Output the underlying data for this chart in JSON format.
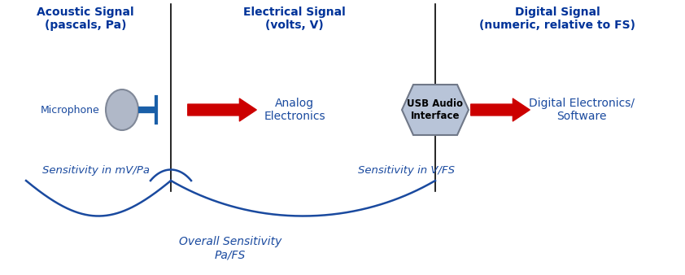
{
  "bg_color": "#ffffff",
  "dark_blue": "#003399",
  "text_blue": "#1a3a8f",
  "label_blue": "#1a4a9f",
  "red": "#cc0000",
  "gray_circle": "#b0b8c8",
  "gray_dark": "#808898",
  "usb_fill": "#b8c4d8",
  "usb_stroke": "#707888",
  "mic_stem_color": "#1a5fa8",
  "title1": "Acoustic Signal\n(pascals, Pa)",
  "title2": "Electrical Signal\n(volts, V)",
  "title3": "Digital Signal\n(numeric, relative to FS)",
  "label_micro": "Microphone",
  "label_analog": "Analog\nElectronics",
  "label_usb": "USB Audio\nInterface",
  "label_digital": "Digital Electronics/\nSoftware",
  "label_sens1": "Sensitivity in mV/Pa",
  "label_sens2": "Sensitivity in V/FS",
  "label_overall": "Overall Sensitivity\nPa/FS",
  "fig_width": 8.42,
  "fig_height": 3.38,
  "dpi": 100
}
